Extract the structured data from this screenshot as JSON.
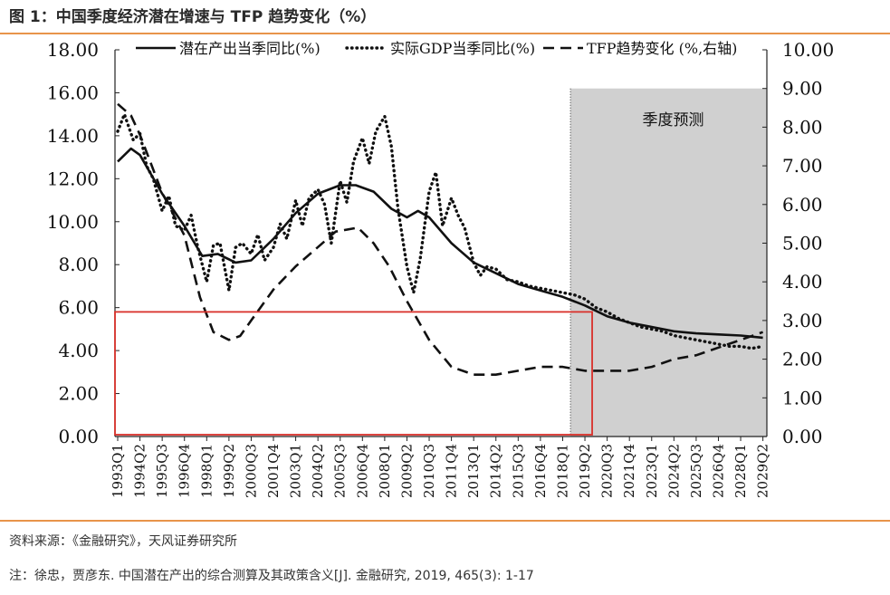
{
  "title": "图 1：中国季度经济潜在增速与 TFP 趋势变化（%）",
  "source": "资料来源：《金融研究》，天风证券研究所",
  "note": "注：徐忠，贾彦东. 中国潜在产出的综合测算及其政策含义[J]. 金融研究, 2019, 465(3): 1-17",
  "colors": {
    "accent": "#e8944a",
    "forecast_shade": "#d0d0d0",
    "highlight_box": "#d9302a",
    "line": "#111111"
  },
  "chart_data": {
    "type": "line",
    "title": "中国季度经济潜在增速与 TFP 趋势变化（%）",
    "forecast_label": "季度预测",
    "forecast_start": "2019Q2",
    "categories": [
      "1993Q1",
      "1994Q2",
      "1995Q3",
      "1996Q4",
      "1998Q1",
      "1999Q2",
      "2000Q3",
      "2001Q4",
      "2003Q1",
      "2004Q2",
      "2005Q3",
      "2006Q4",
      "2008Q1",
      "2009Q2",
      "2010Q3",
      "2011Q4",
      "2013Q1",
      "2014Q2",
      "2015Q3",
      "2016Q4",
      "2018Q1",
      "2019Q2",
      "2020Q3",
      "2021Q4",
      "2023Q1",
      "2024Q2",
      "2025Q3",
      "2026Q4",
      "2028Q1",
      "2029Q2"
    ],
    "y_left": {
      "ticks": [
        "0.00",
        "2.00",
        "4.00",
        "6.00",
        "8.00",
        "10.00",
        "12.00",
        "14.00",
        "16.00",
        "18.00"
      ],
      "ylim": [
        0,
        18
      ]
    },
    "y_right": {
      "ticks": [
        "0.00",
        "1.00",
        "2.00",
        "3.00",
        "4.00",
        "5.00",
        "6.00",
        "7.00",
        "8.00",
        "9.00",
        "10.00"
      ],
      "ylim": [
        0,
        10
      ]
    },
    "series": [
      {
        "name": "潜在产出当季同比(%)",
        "axis": "left",
        "style": "solid",
        "points": [
          [
            0,
            12.8
          ],
          [
            0.6,
            13.4
          ],
          [
            1,
            13.1
          ],
          [
            2,
            11.3
          ],
          [
            3,
            9.8
          ],
          [
            3.8,
            8.4
          ],
          [
            4.5,
            8.5
          ],
          [
            5.3,
            8.1
          ],
          [
            6,
            8.2
          ],
          [
            7,
            9.2
          ],
          [
            8,
            10.4
          ],
          [
            9,
            11.3
          ],
          [
            10,
            11.7
          ],
          [
            10.7,
            11.7
          ],
          [
            11.5,
            11.4
          ],
          [
            12.3,
            10.6
          ],
          [
            13,
            10.2
          ],
          [
            13.5,
            10.5
          ],
          [
            14,
            10.2
          ],
          [
            15,
            9.0
          ],
          [
            16,
            8.1
          ],
          [
            17,
            7.6
          ],
          [
            18,
            7.1
          ],
          [
            19,
            6.8
          ],
          [
            20,
            6.5
          ],
          [
            21,
            6.1
          ],
          [
            22,
            5.6
          ],
          [
            23,
            5.3
          ],
          [
            24,
            5.1
          ],
          [
            25,
            4.9
          ],
          [
            26,
            4.8
          ],
          [
            27,
            4.75
          ],
          [
            28,
            4.7
          ],
          [
            29,
            4.6
          ]
        ]
      },
      {
        "name": "实际GDP当季同比(%)",
        "axis": "left",
        "style": "dotted",
        "points": [
          [
            0,
            14.2
          ],
          [
            0.3,
            15.0
          ],
          [
            0.7,
            13.8
          ],
          [
            1,
            14.1
          ],
          [
            1.3,
            12.6
          ],
          [
            1.6,
            12.0
          ],
          [
            2,
            10.5
          ],
          [
            2.3,
            11.2
          ],
          [
            2.6,
            9.8
          ],
          [
            3,
            9.6
          ],
          [
            3.3,
            10.3
          ],
          [
            3.6,
            8.8
          ],
          [
            4,
            7.2
          ],
          [
            4.3,
            8.9
          ],
          [
            4.6,
            9.0
          ],
          [
            5,
            6.8
          ],
          [
            5.3,
            8.8
          ],
          [
            5.6,
            9.0
          ],
          [
            6,
            8.5
          ],
          [
            6.3,
            9.4
          ],
          [
            6.6,
            8.2
          ],
          [
            7,
            8.8
          ],
          [
            7.3,
            9.9
          ],
          [
            7.6,
            9.2
          ],
          [
            8,
            11.0
          ],
          [
            8.3,
            9.8
          ],
          [
            8.6,
            11.1
          ],
          [
            9,
            11.5
          ],
          [
            9.3,
            10.8
          ],
          [
            9.6,
            9.0
          ],
          [
            10,
            11.9
          ],
          [
            10.3,
            10.9
          ],
          [
            10.6,
            12.8
          ],
          [
            11,
            13.9
          ],
          [
            11.3,
            12.7
          ],
          [
            11.6,
            14.2
          ],
          [
            12,
            14.9
          ],
          [
            12.3,
            13.5
          ],
          [
            12.6,
            10.6
          ],
          [
            13,
            7.9
          ],
          [
            13.3,
            6.7
          ],
          [
            13.6,
            8.3
          ],
          [
            14,
            11.4
          ],
          [
            14.3,
            12.3
          ],
          [
            14.6,
            9.8
          ],
          [
            15,
            11.1
          ],
          [
            15.3,
            10.3
          ],
          [
            15.6,
            9.7
          ],
          [
            16,
            8.1
          ],
          [
            16.3,
            7.5
          ],
          [
            16.6,
            7.9
          ],
          [
            17,
            7.8
          ],
          [
            17.5,
            7.3
          ],
          [
            18,
            7.2
          ],
          [
            18.5,
            7.0
          ],
          [
            19,
            6.9
          ],
          [
            19.5,
            6.8
          ],
          [
            20,
            6.7
          ],
          [
            20.5,
            6.6
          ],
          [
            21,
            6.4
          ],
          [
            21.5,
            6.0
          ],
          [
            22,
            5.8
          ],
          [
            22.5,
            5.5
          ],
          [
            23,
            5.3
          ],
          [
            23.5,
            5.1
          ],
          [
            24,
            5.0
          ],
          [
            24.5,
            4.9
          ],
          [
            25,
            4.7
          ],
          [
            25.5,
            4.6
          ],
          [
            26,
            4.5
          ],
          [
            26.5,
            4.4
          ],
          [
            27,
            4.3
          ],
          [
            27.5,
            4.2
          ],
          [
            28,
            4.2
          ],
          [
            28.5,
            4.1
          ],
          [
            29,
            4.2
          ]
        ]
      },
      {
        "name": "TFP趋势变化 (%,右轴)",
        "axis": "right",
        "style": "dashed",
        "points": [
          [
            0,
            8.6
          ],
          [
            0.6,
            8.3
          ],
          [
            1,
            7.8
          ],
          [
            2,
            6.3
          ],
          [
            3,
            5.2
          ],
          [
            3.7,
            3.6
          ],
          [
            4.3,
            2.7
          ],
          [
            5,
            2.5
          ],
          [
            5.5,
            2.6
          ],
          [
            6,
            3.0
          ],
          [
            7,
            3.8
          ],
          [
            8,
            4.4
          ],
          [
            9,
            4.9
          ],
          [
            9.8,
            5.3
          ],
          [
            10.8,
            5.4
          ],
          [
            11.5,
            5.0
          ],
          [
            12.2,
            4.4
          ],
          [
            13,
            3.5
          ],
          [
            14,
            2.5
          ],
          [
            15,
            1.8
          ],
          [
            16,
            1.6
          ],
          [
            16.5,
            1.6
          ],
          [
            17,
            1.6
          ],
          [
            18,
            1.7
          ],
          [
            19,
            1.8
          ],
          [
            20,
            1.8
          ],
          [
            21,
            1.7
          ],
          [
            22,
            1.7
          ],
          [
            23,
            1.7
          ],
          [
            24,
            1.8
          ],
          [
            25,
            2.0
          ],
          [
            26,
            2.1
          ],
          [
            27,
            2.3
          ],
          [
            28,
            2.5
          ],
          [
            29,
            2.7
          ]
        ]
      }
    ],
    "highlight_box": {
      "from": "1993Q1",
      "to": "2019Q2",
      "y_from": 0,
      "y_to": 5.8
    }
  }
}
